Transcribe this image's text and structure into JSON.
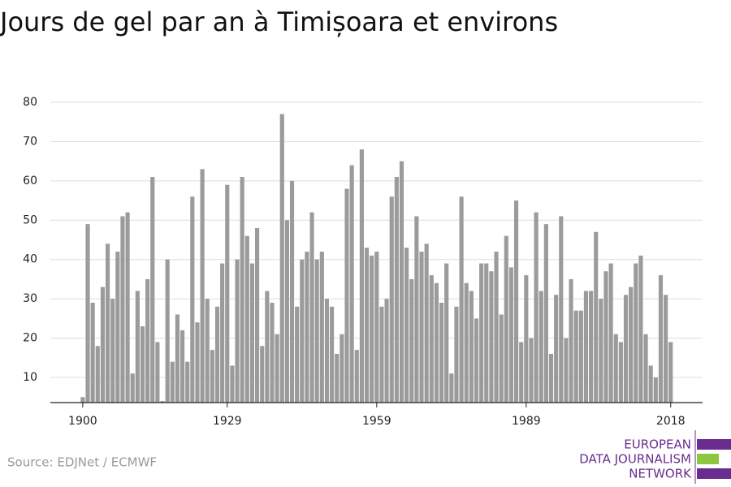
{
  "chart_data": {
    "type": "bar",
    "title": "Jours de gel par an à Timișoara et environs",
    "source": "Source: EDJNet / ECMWF",
    "logo": [
      "EUROPEAN",
      "DATA JOURNALISM",
      "NETWORK"
    ],
    "color": "#9b9b9b",
    "grid": true,
    "x": [
      1900,
      1901,
      1902,
      1903,
      1904,
      1905,
      1906,
      1907,
      1908,
      1909,
      1910,
      1911,
      1912,
      1913,
      1914,
      1915,
      1916,
      1917,
      1918,
      1919,
      1920,
      1921,
      1922,
      1923,
      1924,
      1925,
      1926,
      1927,
      1928,
      1929,
      1930,
      1931,
      1932,
      1933,
      1934,
      1935,
      1936,
      1937,
      1938,
      1939,
      1940,
      1941,
      1942,
      1943,
      1944,
      1945,
      1946,
      1947,
      1948,
      1949,
      1950,
      1951,
      1952,
      1953,
      1954,
      1955,
      1956,
      1957,
      1958,
      1959,
      1960,
      1961,
      1962,
      1963,
      1964,
      1965,
      1966,
      1967,
      1968,
      1969,
      1970,
      1971,
      1972,
      1973,
      1974,
      1975,
      1976,
      1977,
      1978,
      1979,
      1980,
      1981,
      1982,
      1983,
      1984,
      1985,
      1986,
      1987,
      1988,
      1989,
      1990,
      1991,
      1992,
      1993,
      1994,
      1995,
      1996,
      1997,
      1998,
      1999,
      2000,
      2001,
      2002,
      2003,
      2004,
      2005,
      2006,
      2007,
      2008,
      2009,
      2010,
      2011,
      2012,
      2013,
      2014,
      2015,
      2016,
      2017,
      2018
    ],
    "values": [
      5,
      49,
      29,
      18,
      33,
      44,
      30,
      42,
      51,
      52,
      11,
      32,
      23,
      35,
      61,
      19,
      4,
      40,
      14,
      26,
      22,
      14,
      56,
      24,
      63,
      30,
      17,
      28,
      39,
      59,
      13,
      40,
      61,
      46,
      39,
      48,
      18,
      32,
      29,
      21,
      77,
      50,
      60,
      28,
      40,
      42,
      52,
      40,
      42,
      30,
      28,
      16,
      21,
      58,
      64,
      17,
      68,
      43,
      41,
      42,
      28,
      30,
      56,
      61,
      65,
      43,
      35,
      51,
      42,
      44,
      36,
      34,
      29,
      39,
      11,
      28,
      56,
      34,
      32,
      25,
      39,
      39,
      37,
      42,
      26,
      46,
      38,
      55,
      19,
      36,
      20,
      52,
      32,
      49,
      16,
      31,
      51,
      20,
      35,
      27,
      27,
      32,
      32,
      47,
      30,
      37,
      39,
      21,
      19,
      31,
      33,
      39,
      41,
      21,
      13,
      10,
      36,
      31,
      19
    ],
    "xlim": [
      1893.5,
      2024.4
    ],
    "xticks": [
      1900,
      1929,
      1959,
      1989,
      2018
    ],
    "ylim": [
      3.6,
      80
    ],
    "yticks": [
      10,
      20,
      30,
      40,
      50,
      60,
      70,
      80
    ]
  }
}
